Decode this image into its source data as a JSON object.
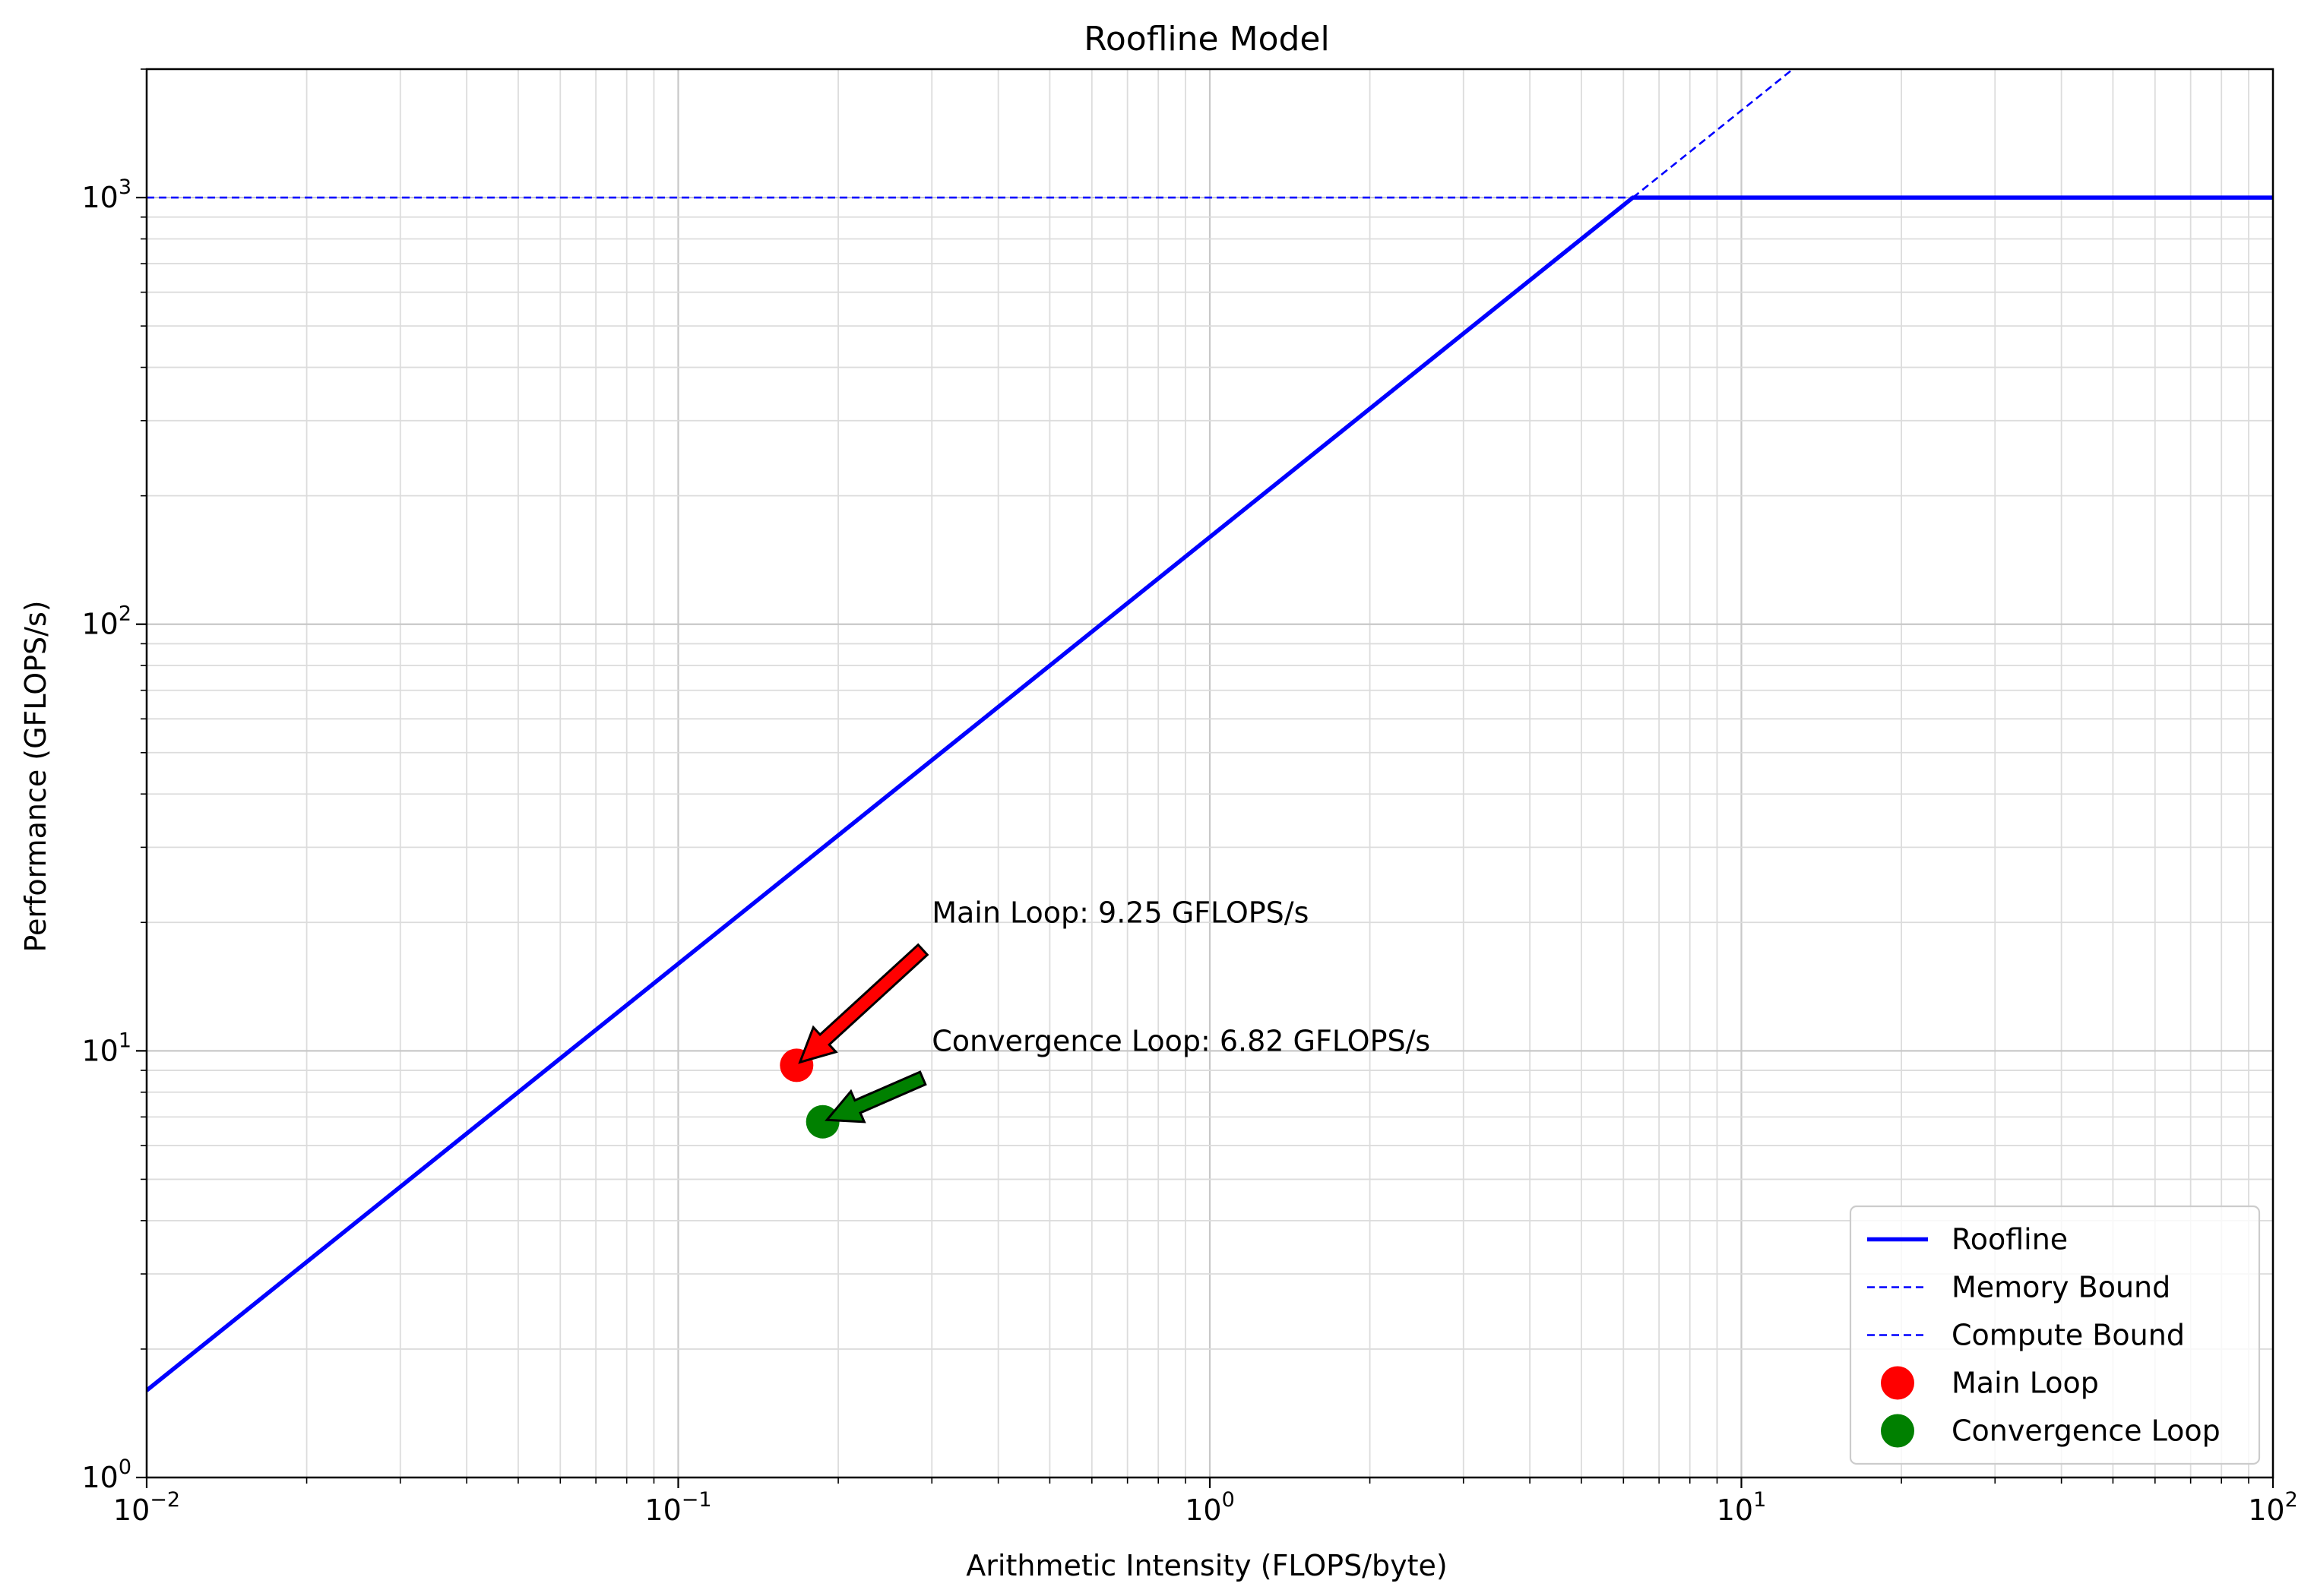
{
  "chart_data": {
    "type": "line",
    "title": "Roofline Model",
    "xlabel": "Arithmetic Intensity (FLOPS/byte)",
    "ylabel": "Performance (GFLOPS/s)",
    "xscale": "log",
    "yscale": "log",
    "xlim": [
      0.01,
      100
    ],
    "ylim": [
      1,
      2000
    ],
    "grid": "both major and minor",
    "x_ticks": [
      {
        "base": "10",
        "exp": "−2",
        "value": 0.01
      },
      {
        "base": "10",
        "exp": "−1",
        "value": 0.1
      },
      {
        "base": "10",
        "exp": "0",
        "value": 1
      },
      {
        "base": "10",
        "exp": "1",
        "value": 10
      },
      {
        "base": "10",
        "exp": "2",
        "value": 100
      }
    ],
    "y_ticks": [
      {
        "base": "10",
        "exp": "0",
        "value": 1
      },
      {
        "base": "10",
        "exp": "1",
        "value": 10
      },
      {
        "base": "10",
        "exp": "2",
        "value": 100
      },
      {
        "base": "10",
        "exp": "3",
        "value": 1000
      }
    ],
    "series": [
      {
        "name": "Roofline",
        "style": "solid",
        "color": "#0000ff",
        "points": [
          [
            0.01,
            1.6
          ],
          [
            6.25,
            1000
          ],
          [
            100,
            1000
          ]
        ]
      },
      {
        "name": "Memory Bound",
        "style": "dashed",
        "color": "#0000ff",
        "points": [
          [
            6.25,
            1000
          ],
          [
            12.5,
            2000
          ]
        ]
      },
      {
        "name": "Compute Bound",
        "style": "dashed",
        "color": "#0000ff",
        "points": [
          [
            0.01,
            1000
          ],
          [
            100,
            1000
          ]
        ]
      },
      {
        "name": "Main Loop",
        "style": "marker",
        "color": "#ff0000",
        "points": [
          [
            0.167,
            9.25
          ]
        ]
      },
      {
        "name": "Convergence Loop",
        "style": "marker",
        "color": "#008000",
        "points": [
          [
            0.187,
            6.82
          ]
        ]
      }
    ],
    "annotations": [
      {
        "text": "Main Loop: 9.25 GFLOPS/s",
        "x": 0.167,
        "y": 9.25,
        "text_x": 0.3,
        "text_y": 20,
        "arrow_color": "#ff0000"
      },
      {
        "text": "Convergence Loop: 6.82 GFLOPS/s",
        "x": 0.187,
        "y": 6.82,
        "text_x": 0.3,
        "text_y": 10,
        "arrow_color": "#008000"
      }
    ],
    "legend": {
      "placement": "lower-right",
      "entries": [
        {
          "label": "Roofline",
          "kind": "line-solid",
          "color": "#0000ff"
        },
        {
          "label": "Memory Bound",
          "kind": "line-dashed",
          "color": "#0000ff"
        },
        {
          "label": "Compute Bound",
          "kind": "line-dashed",
          "color": "#0000ff"
        },
        {
          "label": "Main Loop",
          "kind": "marker",
          "color": "#ff0000"
        },
        {
          "label": "Convergence Loop",
          "kind": "marker",
          "color": "#008000"
        }
      ]
    }
  }
}
